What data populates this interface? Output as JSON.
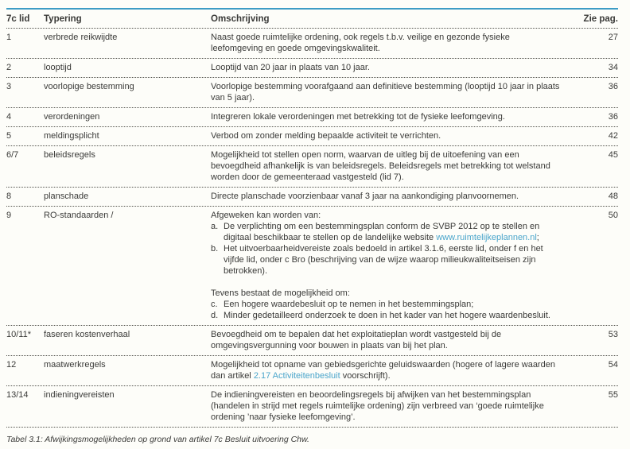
{
  "table": {
    "columns": {
      "lid": "7c lid",
      "typering": "Typering",
      "omschrijving": "Omschrijving",
      "page": "Zie pag."
    },
    "rows": [
      {
        "lid": "1",
        "typering": "verbrede reikwijdte",
        "desc": "Naast goede ruimtelijke ordening, ook regels t.b.v. veilige en gezonde fysieke leefomgeving en goede omgevingskwaliteit.",
        "page": "27"
      },
      {
        "lid": "2",
        "typering": "looptijd",
        "desc": "Looptijd van 20 jaar in plaats van 10 jaar.",
        "page": "34"
      },
      {
        "lid": "3",
        "typering": "voorlopige bestemming",
        "desc": "Voorlopige bestemming voorafgaand aan definitieve bestemming (looptijd 10 jaar in plaats van 5 jaar).",
        "page": "36"
      },
      {
        "lid": "4",
        "typering": "verordeningen",
        "desc": "Integreren lokale verordeningen met betrekking tot de fysieke leefomgeving.",
        "page": "36"
      },
      {
        "lid": "5",
        "typering": "meldingsplicht",
        "desc": "Verbod om zonder melding bepaalde activiteit te verrichten.",
        "page": "42"
      },
      {
        "lid": "6/7",
        "typering": "beleidsregels",
        "desc": "Mogelijkheid tot stellen open norm, waarvan de uitleg bij de uitoefening van een bevoegdheid afhankelijk is van beleidsregels. Beleidsregels met betrekking tot welstand worden door de gemeenteraad vastgesteld (lid 7).",
        "page": "45"
      },
      {
        "lid": "8",
        "typering": "planschade",
        "desc": "Directe planschade voorzienbaar vanaf 3 jaar na aankondiging planvoornemen.",
        "page": "48"
      },
      {
        "lid": "9",
        "typering": "RO-standaarden /",
        "page": "50",
        "intro1": "Afgeweken kan worden van:",
        "item_a_marker": "a.",
        "item_a_pre": "De verplichting om een bestemmingsplan conform de SVBP 2012 op te stellen en digitaal beschikbaar te stellen op de landelijke website ",
        "item_a_link": "www.ruimtelijkeplannen.nl",
        "item_a_post": ";",
        "item_b_marker": "b.",
        "item_b": "Het uitvoerbaarheidvereiste zoals bedoeld in artikel 3.1.6, eerste lid, onder f en het vijfde lid, onder c Bro (beschrijving van de wijze waarop milieukwaliteitseisen zijn betrokken).",
        "intro2": "Tevens bestaat de mogelijkheid om:",
        "item_c_marker": "c.",
        "item_c": "Een hogere waardebesluit op te nemen in het bestemmingsplan;",
        "item_d_marker": "d.",
        "item_d": "Minder gedetailleerd onderzoek te doen in het kader van het hogere waardenbesluit."
      },
      {
        "lid": "10/11*",
        "typering": "faseren kostenverhaal",
        "desc": "Bevoegdheid om te bepalen dat het exploitatieplan wordt vastgesteld bij de omgevingsvergunning voor bouwen in plaats van bij het plan.",
        "page": "53"
      },
      {
        "lid": "12",
        "typering": "maatwerkregels",
        "page": "54",
        "desc_pre": "Mogelijkheid tot opname van gebiedsgerichte geluidswaarden (hogere of lagere waarden dan artikel ",
        "desc_link": "2.17 Activiteitenbesluit",
        "desc_post": " voorschrijft)."
      },
      {
        "lid": "13/14",
        "typering": "indieningvereisten",
        "desc": "De indieningvereisten en beoordelingsregels bij afwijken van het bestemmingsplan (handelen in strijd met regels ruimtelijke ordening) zijn verbreed van ‘goede ruimtelijke ordening ’naar fysieke leefomgeving’.",
        "page": "55"
      }
    ]
  },
  "caption": "Tabel 3.1: Afwijkingsmogelijkheden op grond van artikel 7c Besluit uitvoering Chw.",
  "colors": {
    "accent_line": "#3d9cc5",
    "link": "#4aa5cb",
    "text": "#3a3a38"
  }
}
